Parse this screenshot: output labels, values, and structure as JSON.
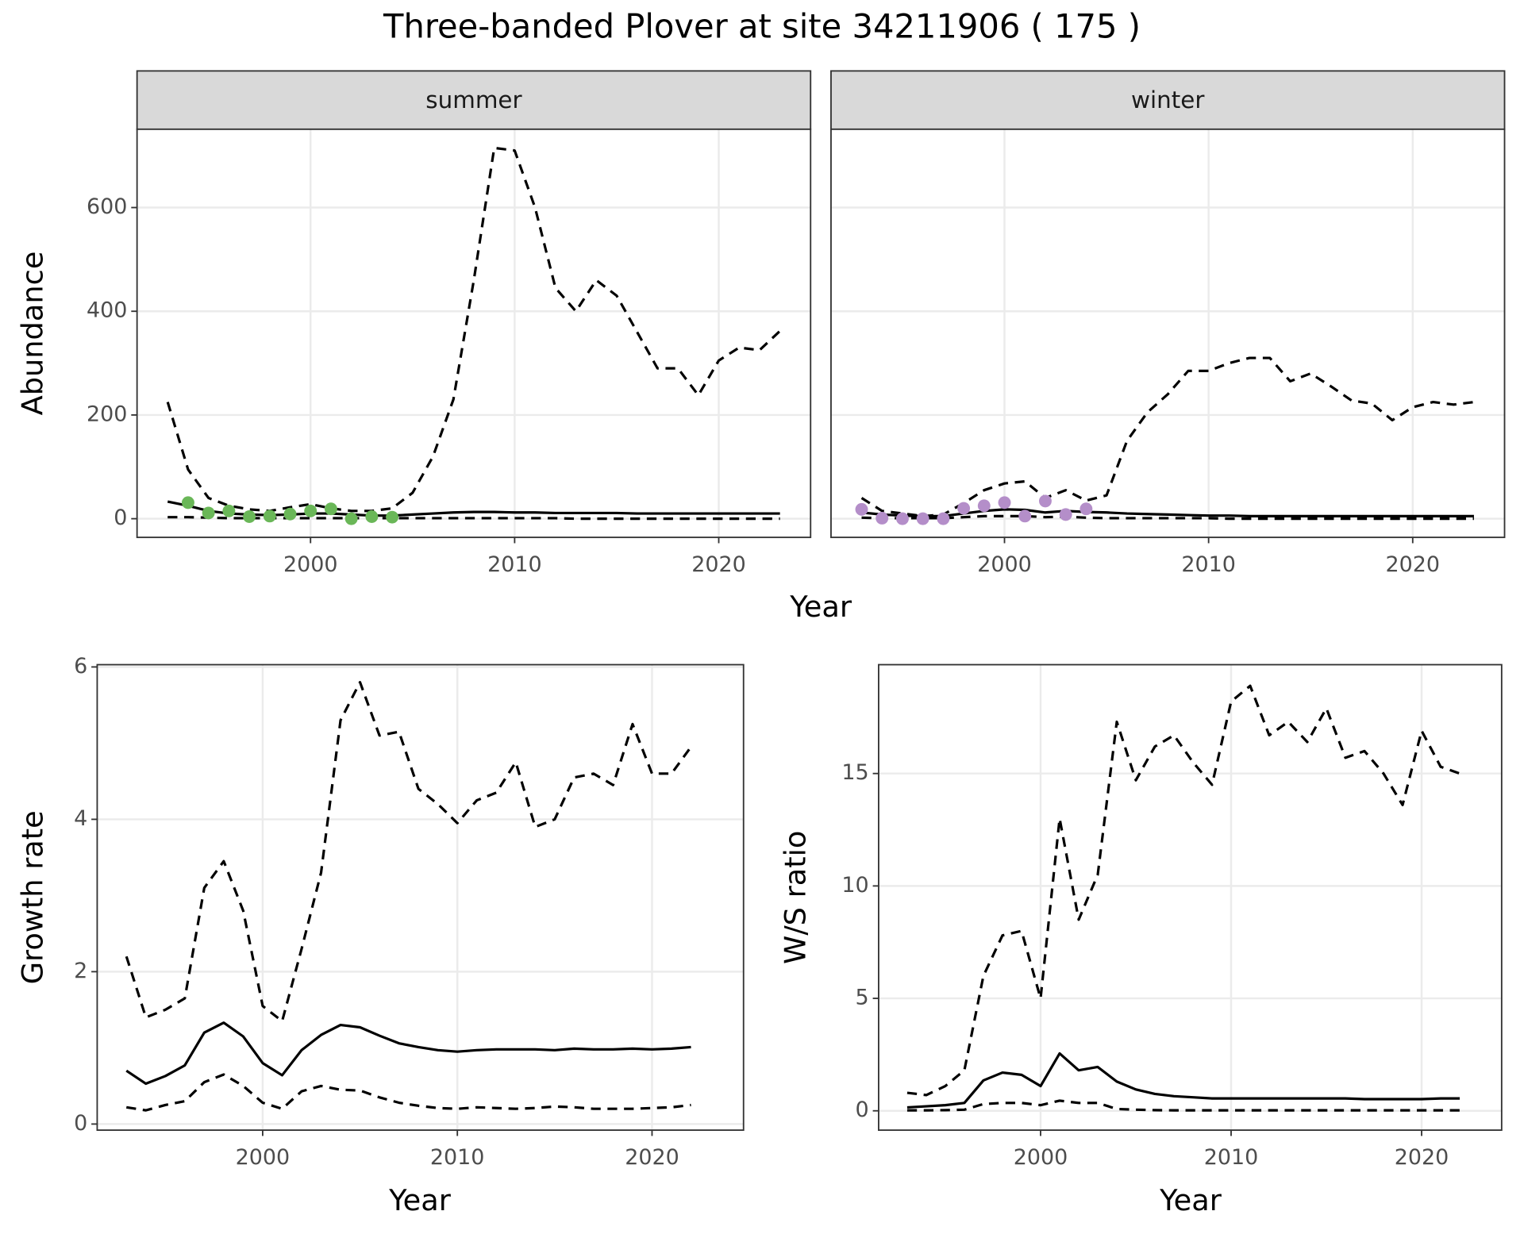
{
  "title": "Three-banded Plover at site 34211906 ( 175 )",
  "chart_data": [
    {
      "type": "line",
      "xlabel": "Year",
      "ylabel": "Abundance",
      "x": [
        1993,
        1994,
        1995,
        1996,
        1997,
        1998,
        1999,
        2000,
        2001,
        2002,
        2003,
        2004,
        2005,
        2006,
        2007,
        2008,
        2009,
        2010,
        2011,
        2012,
        2013,
        2014,
        2015,
        2016,
        2017,
        2018,
        2019,
        2020,
        2021,
        2022,
        2023
      ],
      "xlim": [
        1991.5,
        2024.5
      ],
      "ylim": [
        -36,
        751
      ],
      "xticks": [
        2000,
        2010,
        2020
      ],
      "yticks": [
        0,
        200,
        400,
        600
      ],
      "grid": true,
      "facets": [
        {
          "label": "summer",
          "series": [
            {
              "style": "dashed",
              "color": "#000000",
              "values": [
                225,
                95,
                40,
                25,
                18,
                15,
                22,
                28,
                20,
                15,
                15,
                20,
                50,
                120,
                230,
                460,
                715,
                710,
                600,
                445,
                400,
                460,
                430,
                360,
                290,
                290,
                238,
                305,
                330,
                325,
                362
              ]
            },
            {
              "style": "solid",
              "color": "#000000",
              "values": [
                33,
                25,
                15,
                10,
                8,
                7,
                8,
                10,
                10,
                8,
                6,
                6,
                8,
                10,
                12,
                13,
                13,
                12,
                12,
                11,
                11,
                11,
                11,
                10,
                10,
                10,
                10,
                10,
                10,
                10,
                10
              ]
            },
            {
              "style": "dashed",
              "color": "#000000",
              "values": [
                3,
                3,
                2,
                1,
                1,
                1,
                1,
                1,
                1,
                1,
                1,
                1,
                1,
                1,
                1,
                1,
                1,
                1,
                1,
                1,
                0,
                0,
                0,
                0,
                0,
                0,
                0,
                0,
                0,
                0,
                0
              ]
            },
            {
              "style": "points",
              "color": "#6ab758",
              "x": [
                1994,
                1995,
                1996,
                1997,
                1998,
                1999,
                2000,
                2001,
                2002,
                2003,
                2004
              ],
              "values": [
                31,
                11,
                15,
                4,
                5,
                9,
                15,
                19,
                0,
                4,
                3
              ]
            }
          ]
        },
        {
          "label": "winter",
          "series": [
            {
              "style": "dashed",
              "color": "#000000",
              "values": [
                40,
                15,
                10,
                5,
                8,
                30,
                55,
                68,
                72,
                40,
                55,
                35,
                45,
                150,
                205,
                240,
                285,
                285,
                300,
                310,
                310,
                265,
                280,
                255,
                228,
                222,
                190,
                215,
                225,
                220,
                225
              ]
            },
            {
              "style": "solid",
              "color": "#000000",
              "values": [
                12,
                8,
                6,
                5,
                5,
                10,
                15,
                18,
                17,
                12,
                15,
                13,
                12,
                10,
                9,
                8,
                7,
                6,
                6,
                5,
                5,
                5,
                5,
                5,
                5,
                5,
                5,
                5,
                5,
                5,
                5
              ]
            },
            {
              "style": "dashed",
              "color": "#000000",
              "values": [
                2,
                1,
                1,
                1,
                1,
                3,
                5,
                5,
                5,
                3,
                4,
                2,
                1,
                1,
                1,
                1,
                1,
                1,
                0,
                0,
                0,
                0,
                0,
                0,
                0,
                0,
                0,
                0,
                0,
                0,
                0
              ]
            },
            {
              "style": "points",
              "color": "#b48ec9",
              "x": [
                1993,
                1994,
                1995,
                1996,
                1997,
                1998,
                1999,
                2000,
                2001,
                2002,
                2003,
                2004
              ],
              "values": [
                18,
                1,
                0,
                0,
                0,
                20,
                25,
                31,
                5,
                34,
                8,
                19
              ]
            }
          ]
        }
      ]
    },
    {
      "type": "line",
      "xlabel": "Year",
      "ylabel": "Growth rate",
      "x": [
        1993,
        1994,
        1995,
        1996,
        1997,
        1998,
        1999,
        2000,
        2001,
        2002,
        2003,
        2004,
        2005,
        2006,
        2007,
        2008,
        2009,
        2010,
        2011,
        2012,
        2013,
        2014,
        2015,
        2016,
        2017,
        2018,
        2019,
        2020,
        2021,
        2022
      ],
      "xlim": [
        1991.5,
        2024.7
      ],
      "ylim": [
        -0.08,
        6.03
      ],
      "xticks": [
        2000,
        2010,
        2020
      ],
      "yticks": [
        0,
        2,
        4,
        6
      ],
      "grid": true,
      "series": [
        {
          "style": "dashed",
          "color": "#000000",
          "values": [
            2.2,
            1.4,
            1.5,
            1.65,
            3.1,
            3.45,
            2.8,
            1.55,
            1.35,
            2.3,
            3.3,
            5.3,
            5.8,
            5.1,
            5.15,
            4.4,
            4.2,
            3.95,
            4.25,
            4.35,
            4.75,
            3.9,
            4.0,
            4.55,
            4.6,
            4.45,
            5.25,
            4.6,
            4.6,
            4.95
          ]
        },
        {
          "style": "solid",
          "color": "#000000",
          "values": [
            0.7,
            0.53,
            0.63,
            0.77,
            1.2,
            1.33,
            1.15,
            0.8,
            0.64,
            0.97,
            1.17,
            1.3,
            1.27,
            1.16,
            1.06,
            1.01,
            0.97,
            0.95,
            0.97,
            0.98,
            0.98,
            0.98,
            0.97,
            0.99,
            0.98,
            0.98,
            0.99,
            0.98,
            0.99,
            1.01
          ]
        },
        {
          "style": "dashed",
          "color": "#000000",
          "values": [
            0.22,
            0.18,
            0.25,
            0.3,
            0.55,
            0.65,
            0.5,
            0.28,
            0.2,
            0.43,
            0.5,
            0.45,
            0.44,
            0.35,
            0.28,
            0.24,
            0.21,
            0.2,
            0.22,
            0.21,
            0.2,
            0.21,
            0.23,
            0.22,
            0.2,
            0.2,
            0.2,
            0.21,
            0.22,
            0.25
          ]
        }
      ]
    },
    {
      "type": "line",
      "xlabel": "Year",
      "ylabel": "W/S ratio",
      "x": [
        1993,
        1994,
        1995,
        1996,
        1997,
        1998,
        1999,
        2000,
        2001,
        2002,
        2003,
        2004,
        2005,
        2006,
        2007,
        2008,
        2009,
        2010,
        2011,
        2012,
        2013,
        2014,
        2015,
        2016,
        2017,
        2018,
        2019,
        2020,
        2021,
        2022
      ],
      "xlim": [
        1991.5,
        2024.2
      ],
      "ylim": [
        -0.86,
        19.84
      ],
      "xticks": [
        2000,
        2010,
        2020
      ],
      "yticks": [
        0,
        5,
        10,
        15
      ],
      "grid": true,
      "series": [
        {
          "style": "dashed",
          "color": "#000000",
          "values": [
            0.8,
            0.7,
            1.1,
            1.8,
            6.0,
            7.8,
            8.0,
            5.0,
            13.0,
            8.5,
            10.5,
            17.3,
            14.7,
            16.2,
            16.7,
            15.5,
            14.5,
            18.2,
            18.9,
            16.7,
            17.3,
            16.4,
            17.9,
            15.7,
            16.0,
            15.0,
            13.6,
            16.9,
            15.3,
            15.0
          ]
        },
        {
          "style": "solid",
          "color": "#000000",
          "values": [
            0.15,
            0.2,
            0.25,
            0.35,
            1.35,
            1.7,
            1.6,
            1.1,
            2.55,
            1.8,
            1.95,
            1.3,
            0.95,
            0.75,
            0.65,
            0.6,
            0.55,
            0.55,
            0.55,
            0.55,
            0.55,
            0.55,
            0.55,
            0.55,
            0.52,
            0.52,
            0.52,
            0.52,
            0.55,
            0.55
          ]
        },
        {
          "style": "dashed",
          "color": "#000000",
          "values": [
            0.02,
            0.02,
            0.03,
            0.05,
            0.3,
            0.35,
            0.35,
            0.25,
            0.45,
            0.35,
            0.35,
            0.08,
            0.05,
            0.03,
            0.02,
            0.02,
            0.02,
            0.02,
            0.02,
            0.02,
            0.02,
            0.02,
            0.02,
            0.02,
            0.02,
            0.02,
            0.02,
            0.02,
            0.02,
            0.02
          ]
        }
      ]
    }
  ]
}
